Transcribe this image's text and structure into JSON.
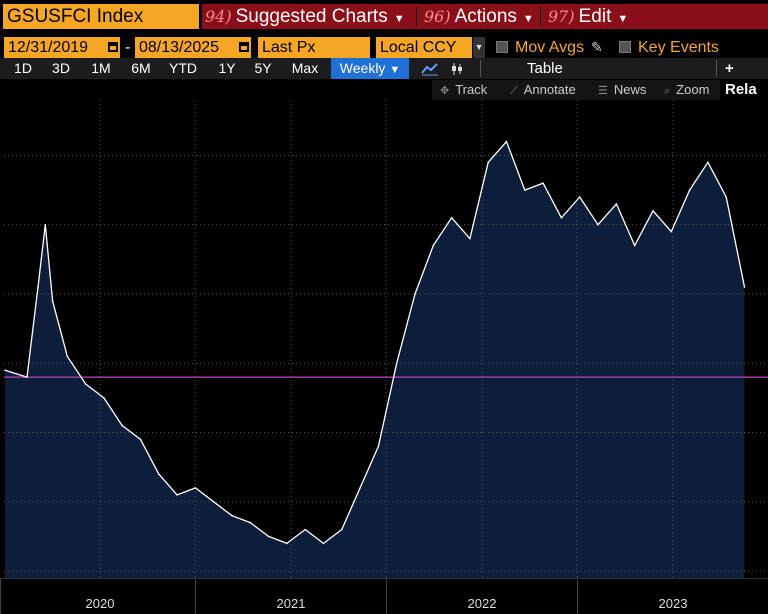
{
  "header": {
    "ticker": "GSUSFCI Index",
    "menus": [
      {
        "num": "94)",
        "label": "Suggested Charts"
      },
      {
        "num": "96)",
        "label": "Actions"
      },
      {
        "num": "97)",
        "label": "Edit"
      }
    ]
  },
  "controls": {
    "start_date": "12/31/2019",
    "end_date": "08/13/2025",
    "date_sep": "-",
    "field": "Last Px",
    "currency": "Local CCY",
    "mov_avgs": "Mov Avgs",
    "key_events": "Key Events"
  },
  "periods": {
    "items": [
      "1D",
      "3D",
      "1M",
      "6M",
      "YTD",
      "1Y",
      "5Y",
      "Max"
    ],
    "frequency": "Weekly",
    "table": "Table",
    "related": "+ Rela"
  },
  "tools": {
    "track": "Track",
    "annotate": "Annotate",
    "news": "News",
    "zoom": "Zoom"
  },
  "colors": {
    "accent": "#f5a623",
    "menu_bg": "#8a0f19",
    "selected": "#1e6fd6",
    "area_fill": "#0d1e3a",
    "line": "#ffffff",
    "reference_line": "#c040c0"
  },
  "chart_data": {
    "type": "area",
    "frequency": "weekly",
    "x": [
      "2020-01-03",
      "2020-02-14",
      "2020-03-06",
      "2020-03-20",
      "2020-04-03",
      "2020-05-01",
      "2020-06-05",
      "2020-07-10",
      "2020-08-14",
      "2020-09-18",
      "2020-10-23",
      "2020-11-27",
      "2021-01-01",
      "2021-02-05",
      "2021-03-12",
      "2021-04-16",
      "2021-05-21",
      "2021-06-25",
      "2021-07-30",
      "2021-09-03",
      "2021-10-08",
      "2021-11-12",
      "2021-12-17",
      "2022-01-21",
      "2022-02-25",
      "2022-04-01",
      "2022-05-06",
      "2022-06-10",
      "2022-07-15",
      "2022-08-19",
      "2022-09-23",
      "2022-10-28",
      "2022-12-02",
      "2023-01-06",
      "2023-02-10",
      "2023-03-17",
      "2023-04-21",
      "2023-05-26",
      "2023-06-30",
      "2023-08-04",
      "2023-09-08",
      "2023-10-13",
      "2023-11-17"
    ],
    "values": [
      99.95,
      99.9,
      100.55,
      101.0,
      100.45,
      100.05,
      99.85,
      99.75,
      99.55,
      99.45,
      99.2,
      99.05,
      99.1,
      99.0,
      98.9,
      98.85,
      98.75,
      98.7,
      98.8,
      98.7,
      98.8,
      99.1,
      99.4,
      100.0,
      100.5,
      100.85,
      101.05,
      100.9,
      101.45,
      101.6,
      101.25,
      101.3,
      101.05,
      101.2,
      101.0,
      101.15,
      100.85,
      101.1,
      100.95,
      101.25,
      101.45,
      101.2,
      100.55
    ],
    "reference_line": 99.9,
    "ylim": [
      98.45,
      101.9
    ],
    "x_labels": [
      "2020",
      "2021",
      "2022",
      "2023"
    ],
    "grid": true
  }
}
